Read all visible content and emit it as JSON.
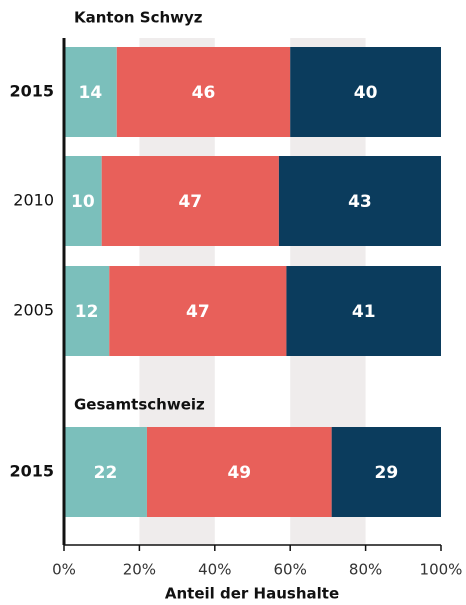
{
  "chart_data": {
    "type": "stacked-bar-horizontal",
    "categories": [
      "2015",
      "2010",
      "2005",
      "2015"
    ],
    "annotations": [
      "Kanton Schwyz",
      "Gesamtschweiz"
    ],
    "series": [
      {
        "color": "#7bbfbb",
        "values": [
          14,
          10,
          12,
          22
        ]
      },
      {
        "color": "#e8605a",
        "values": [
          46,
          47,
          47,
          49
        ]
      },
      {
        "color": "#0b3c5d",
        "values": [
          40,
          43,
          41,
          29
        ]
      }
    ],
    "xlim": [
      0,
      100
    ],
    "xticks": [
      {
        "value": 0,
        "label": "0%"
      },
      {
        "value": 20,
        "label": "20%"
      },
      {
        "value": 40,
        "label": "40%"
      },
      {
        "value": 60,
        "label": "60%"
      },
      {
        "value": 80,
        "label": "80%"
      },
      {
        "value": 100,
        "label": "100%"
      }
    ],
    "xlabel": "Anteil der Haushalte",
    "band_color": "#efecec"
  }
}
